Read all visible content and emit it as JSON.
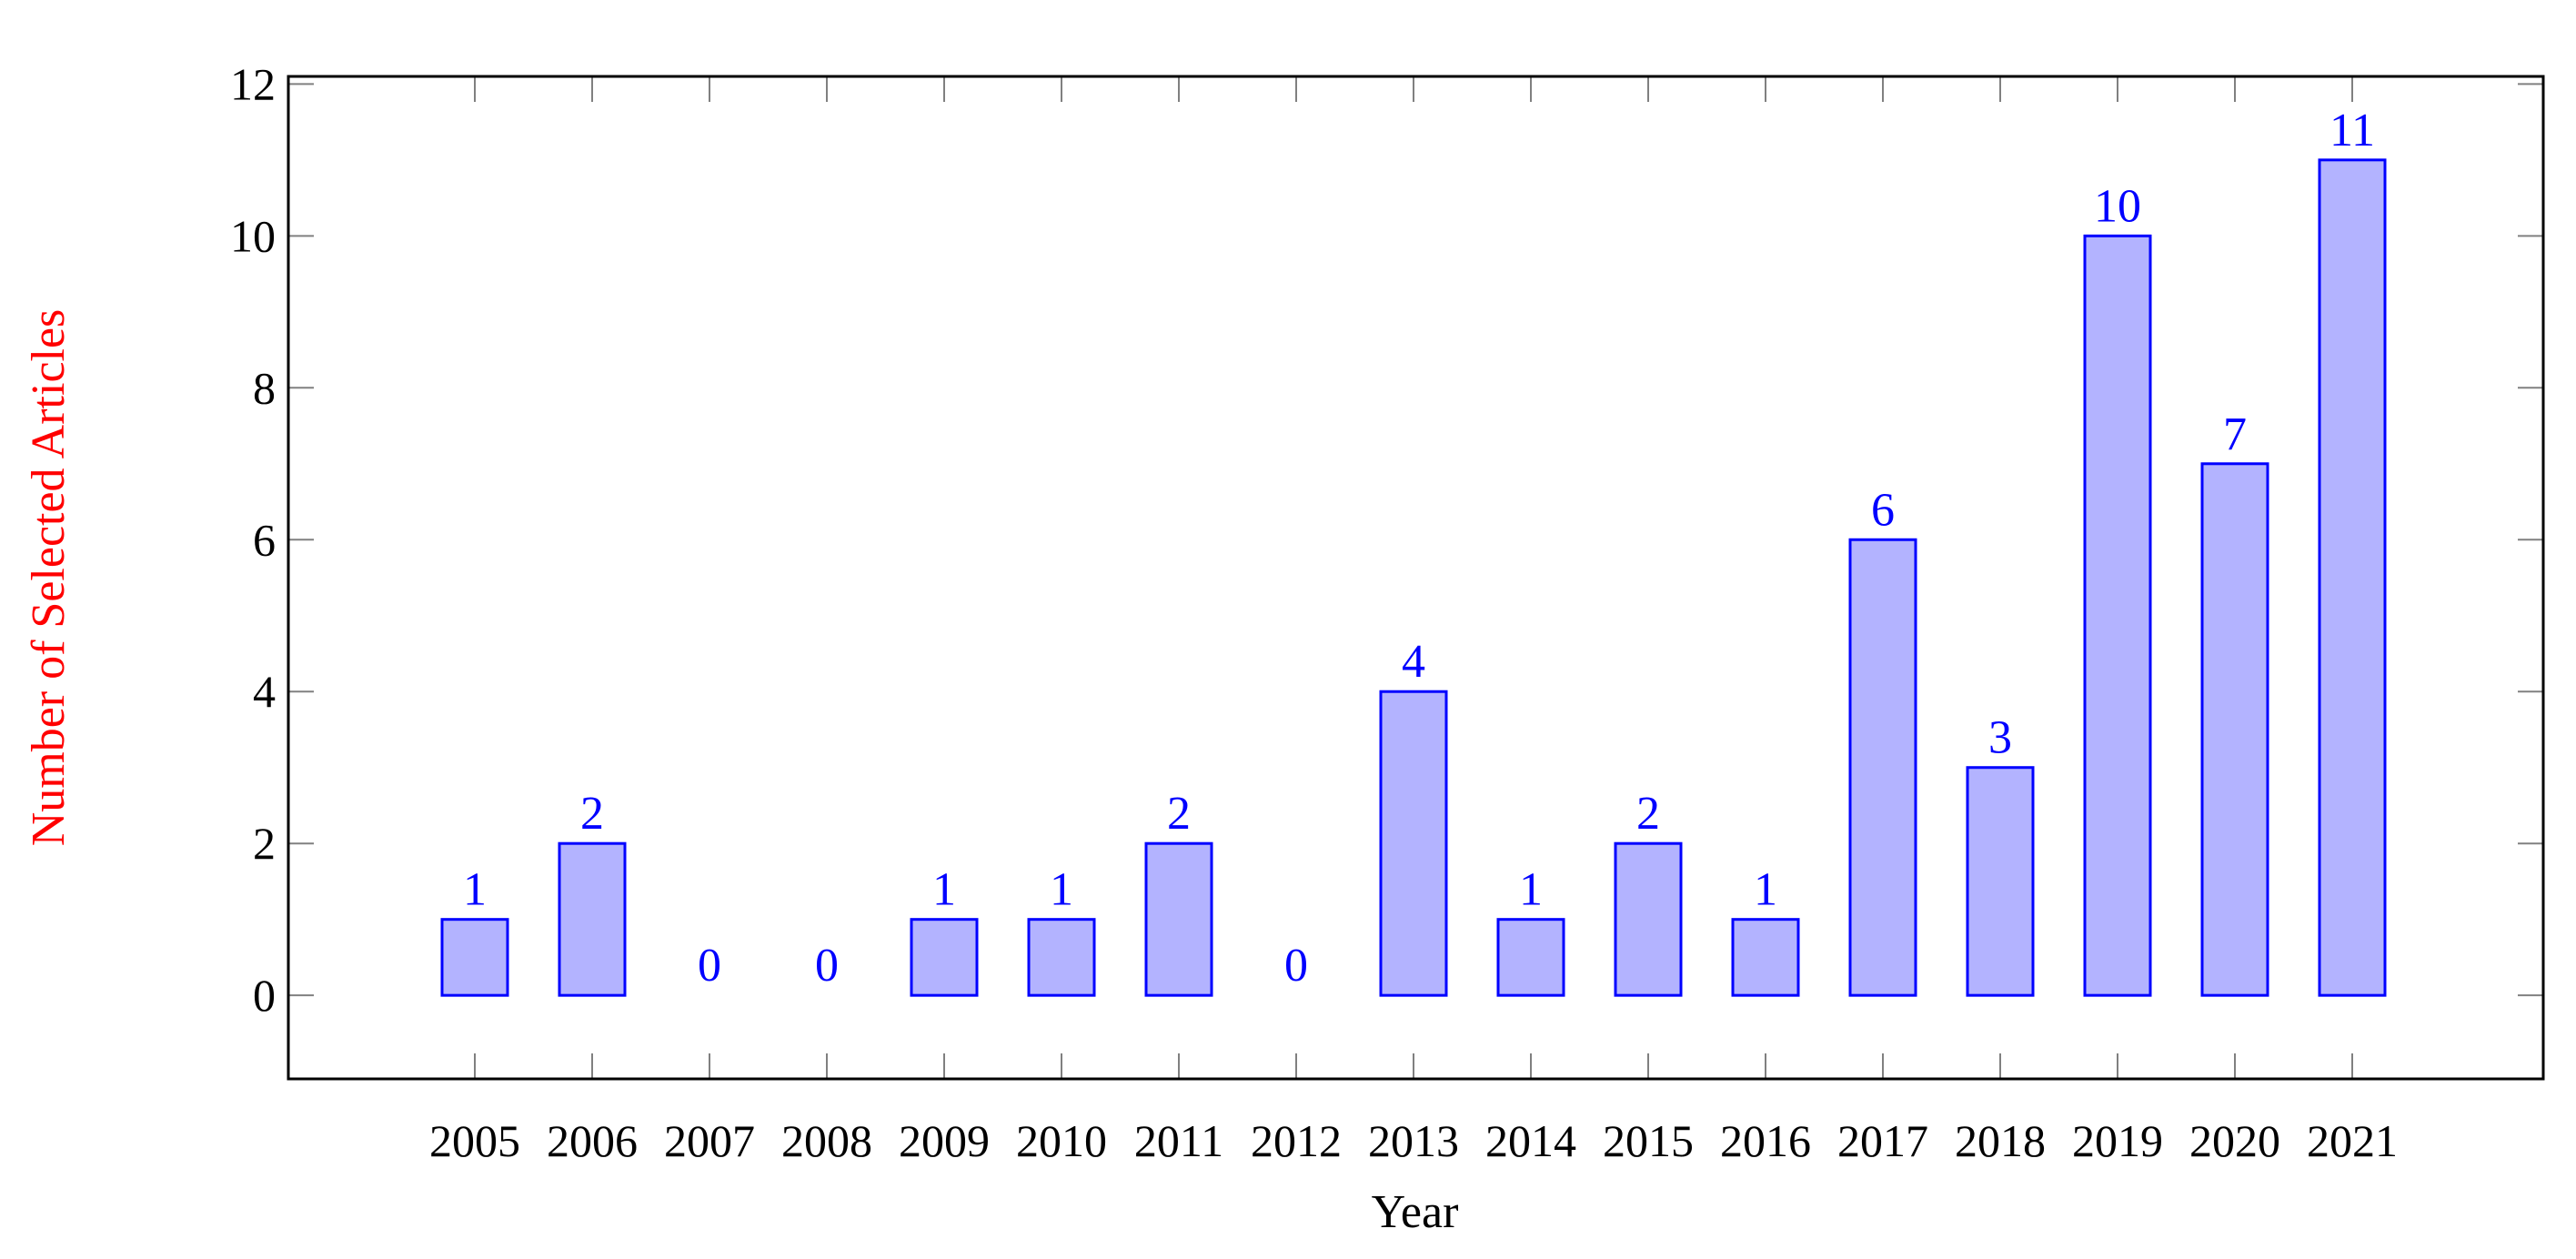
{
  "chart_data": {
    "type": "bar",
    "categories": [
      "2005",
      "2006",
      "2007",
      "2008",
      "2009",
      "2010",
      "2011",
      "2012",
      "2013",
      "2014",
      "2015",
      "2016",
      "2017",
      "2018",
      "2019",
      "2020",
      "2021"
    ],
    "values": [
      1,
      2,
      0,
      0,
      1,
      1,
      2,
      0,
      4,
      1,
      2,
      1,
      6,
      3,
      10,
      7,
      11
    ],
    "data_labels": [
      "1",
      "2",
      "0",
      "0",
      "1",
      "1",
      "2",
      "0",
      "4",
      "1",
      "2",
      "1",
      "6",
      "3",
      "10",
      "7",
      "11"
    ],
    "title": "",
    "xlabel": "Year",
    "ylabel": "Number of Selected Articles",
    "ylim": [
      -1.1,
      12.1
    ],
    "yticks": [
      0,
      2,
      4,
      6,
      8,
      10,
      12
    ],
    "ytick_labels": [
      "0",
      "2",
      "4",
      "6",
      "8",
      "10",
      "12"
    ],
    "grid": false,
    "legend": "none",
    "colors": {
      "bar_fill": "#b3b3ff",
      "bar_stroke": "#0000ff",
      "data_label": "#0000ff",
      "ylabel": "#ff0000",
      "xlabel": "#000000",
      "axis": "#000000",
      "tick": "#808080"
    }
  }
}
